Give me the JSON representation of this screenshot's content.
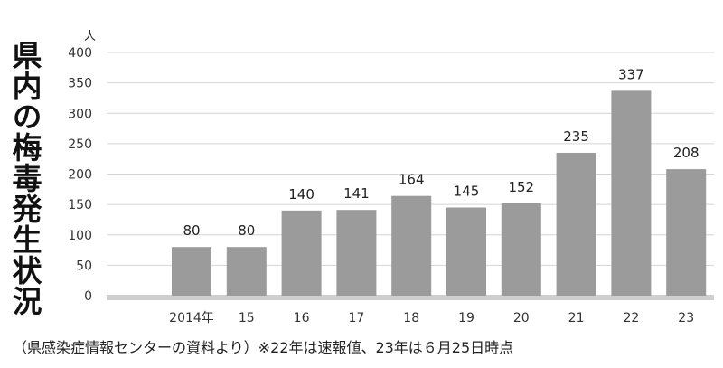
{
  "title": "県内の梅毒発生状況",
  "source_note": "（県感染症情報センターの資料より）※22年は速報値、23年は６月25日時点",
  "colors": {
    "bar": "#9b9b9c",
    "grid": "#d4d4d4",
    "baseline": "#cfcfcf"
  },
  "chart_data": {
    "type": "bar",
    "title": "県内の梅毒発生状況",
    "ylabel": "人",
    "xlabel": "",
    "categories": [
      "2014年",
      "15",
      "16",
      "17",
      "18",
      "19",
      "20",
      "21",
      "22",
      "23"
    ],
    "values": [
      80,
      80,
      140,
      141,
      164,
      145,
      152,
      235,
      337,
      208
    ],
    "data_labels": [
      "80",
      "80",
      "140",
      "141",
      "164",
      "145",
      "152",
      "235",
      "337",
      "208"
    ],
    "ylim": [
      0,
      400
    ],
    "yticks": [
      0,
      50,
      100,
      150,
      200,
      250,
      300,
      350,
      400
    ],
    "ytick_labels": [
      "0",
      "50",
      "100",
      "150",
      "200",
      "250",
      "300",
      "350",
      "400"
    ],
    "grid": true,
    "legend": "none"
  }
}
